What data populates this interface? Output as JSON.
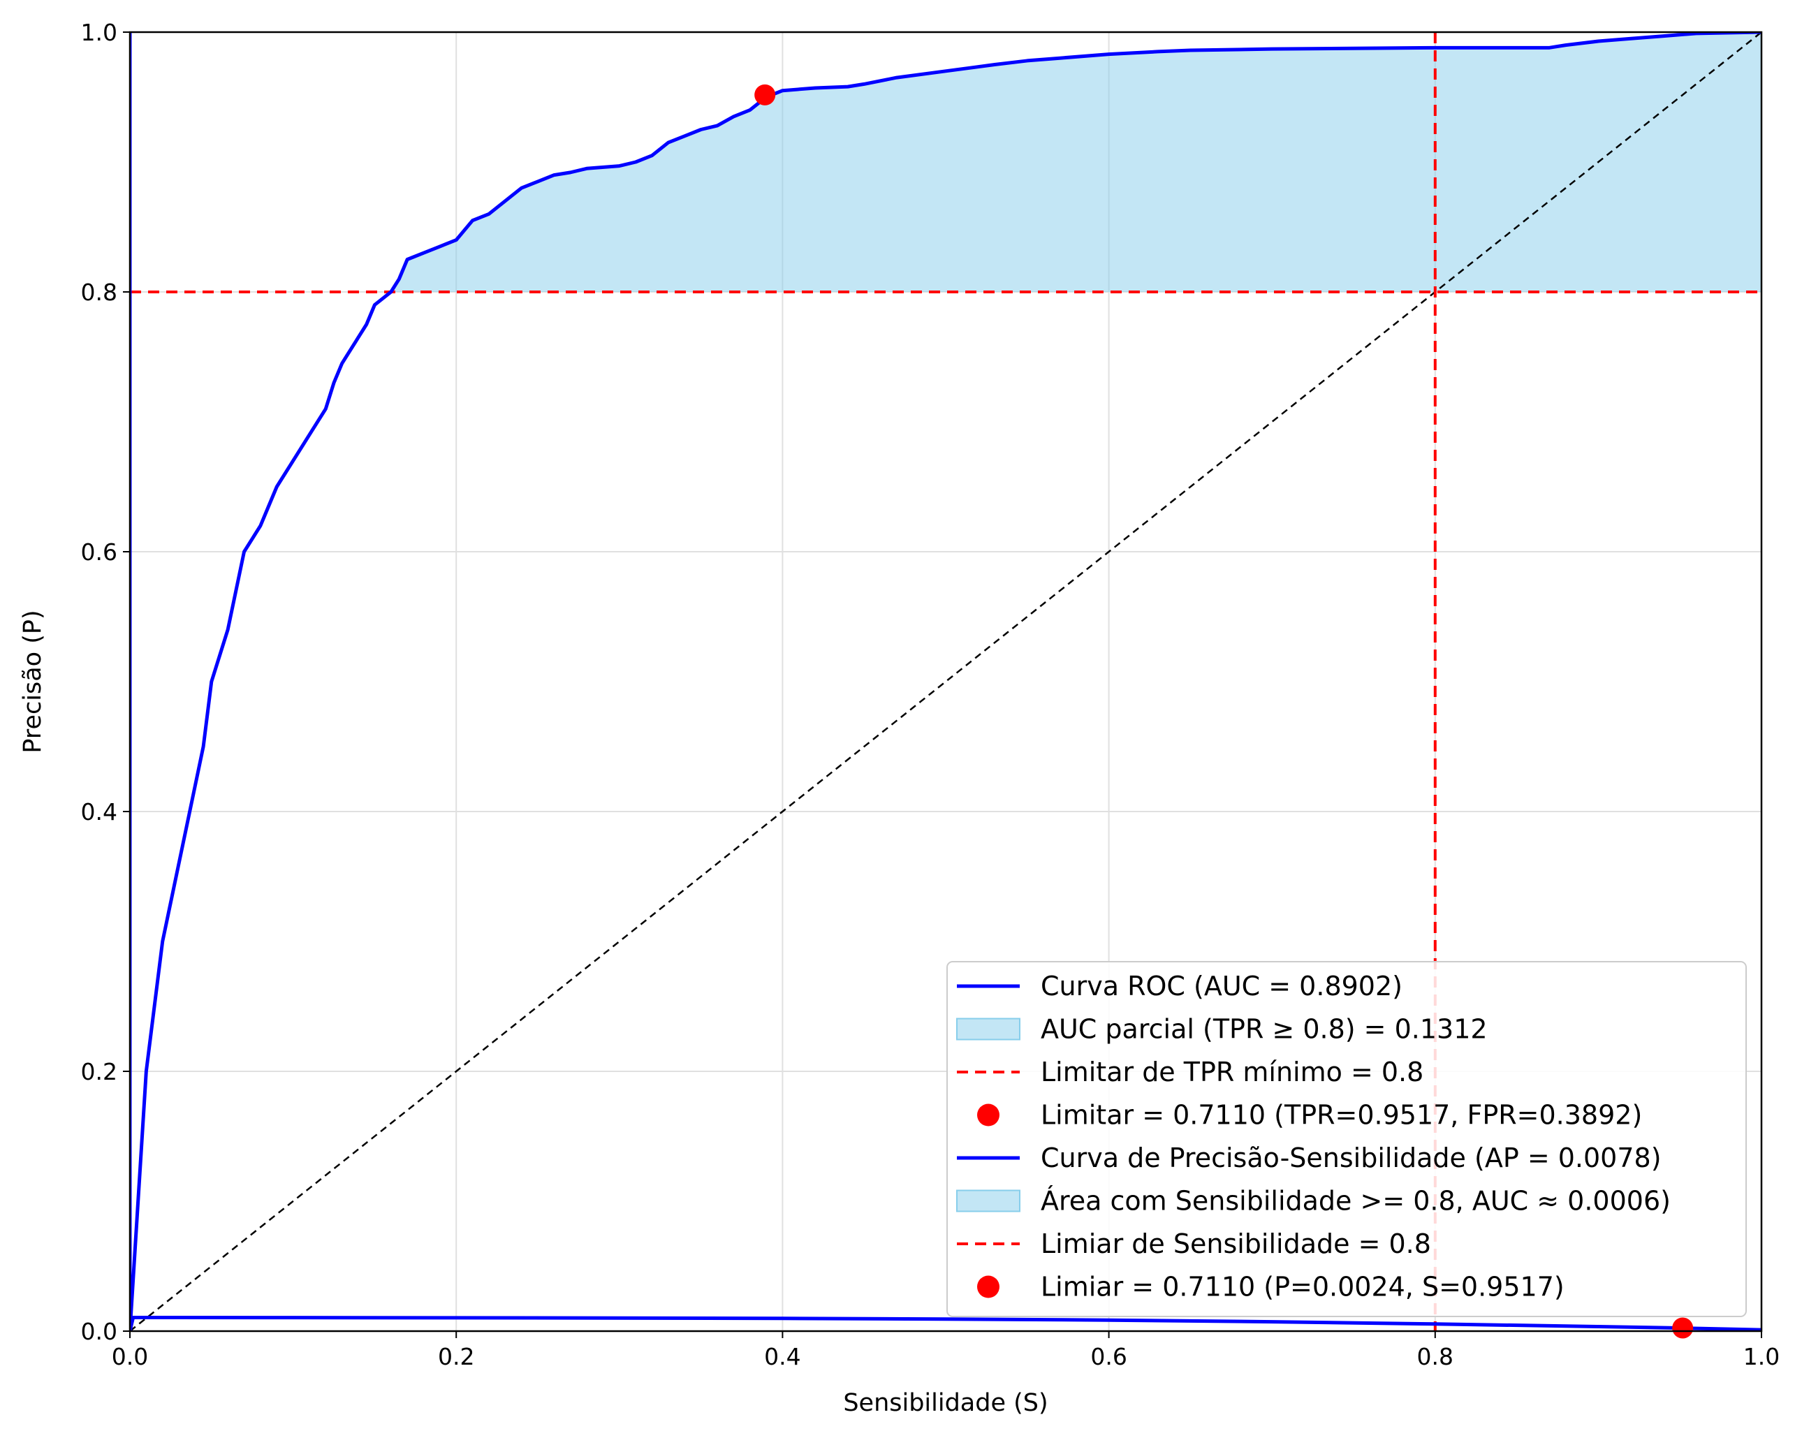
{
  "colors": {
    "curve": "#0000ff",
    "fill": "#87ceeb",
    "threshold": "#ff0000",
    "diagonal": "#000000",
    "grid": "#e0e0e0"
  },
  "chart_data": {
    "type": "line",
    "title": "",
    "xlabel": "Sensibilidade (S)",
    "ylabel": "Precisão (P)",
    "xlim": [
      0.0,
      1.0
    ],
    "ylim": [
      0.0,
      1.0
    ],
    "xticks": [
      "0.0",
      "0.2",
      "0.4",
      "0.6",
      "0.8",
      "1.0"
    ],
    "yticks": [
      "0.0",
      "0.2",
      "0.4",
      "0.6",
      "0.8",
      "1.0"
    ],
    "grid": true,
    "legend_position": "lower-right",
    "series": [
      {
        "name": "Curva ROC (AUC = 0.8902)",
        "kind": "line",
        "x": [
          0.0,
          0.005,
          0.01,
          0.02,
          0.03,
          0.035,
          0.04,
          0.045,
          0.05,
          0.06,
          0.065,
          0.07,
          0.075,
          0.08,
          0.085,
          0.09,
          0.1,
          0.11,
          0.12,
          0.125,
          0.13,
          0.135,
          0.14,
          0.145,
          0.15,
          0.155,
          0.16,
          0.165,
          0.17,
          0.18,
          0.19,
          0.2,
          0.21,
          0.22,
          0.23,
          0.24,
          0.25,
          0.26,
          0.27,
          0.28,
          0.3,
          0.31,
          0.32,
          0.33,
          0.34,
          0.35,
          0.36,
          0.37,
          0.38,
          0.39,
          0.4,
          0.42,
          0.44,
          0.45,
          0.47,
          0.5,
          0.53,
          0.55,
          0.57,
          0.6,
          0.63,
          0.65,
          0.7,
          0.8,
          0.87,
          0.88,
          0.9,
          0.92,
          0.94,
          0.96,
          1.0
        ],
        "y": [
          0.0,
          0.1,
          0.2,
          0.3,
          0.36,
          0.39,
          0.42,
          0.45,
          0.5,
          0.54,
          0.57,
          0.6,
          0.61,
          0.62,
          0.635,
          0.65,
          0.67,
          0.69,
          0.71,
          0.73,
          0.745,
          0.755,
          0.765,
          0.775,
          0.79,
          0.795,
          0.8,
          0.81,
          0.825,
          0.83,
          0.835,
          0.84,
          0.855,
          0.86,
          0.87,
          0.88,
          0.885,
          0.89,
          0.892,
          0.895,
          0.897,
          0.9,
          0.905,
          0.915,
          0.92,
          0.925,
          0.928,
          0.935,
          0.94,
          0.95,
          0.955,
          0.957,
          0.958,
          0.96,
          0.965,
          0.97,
          0.975,
          0.978,
          0.98,
          0.983,
          0.985,
          0.986,
          0.987,
          0.988,
          0.988,
          0.99,
          0.993,
          0.995,
          0.997,
          0.999,
          1.0
        ]
      },
      {
        "name": "AUC parcial (TPR ≥ 0.8) = 0.1312",
        "kind": "area",
        "baseline": 0.8
      },
      {
        "name": "Limitar de TPR mínimo = 0.8",
        "kind": "hline",
        "y": 0.8
      },
      {
        "name": "Limitar = 0.7110 (TPR=0.9517, FPR=0.3892)",
        "kind": "point",
        "x": 0.3892,
        "y": 0.9517
      },
      {
        "name": "Curva de Precisão-Sensibilidade (AP = 0.0078)",
        "kind": "line",
        "x": [
          0.0,
          0.002,
          0.1,
          0.2,
          0.3,
          0.4,
          0.5,
          0.6,
          0.7,
          0.8,
          0.9,
          0.95,
          1.0
        ],
        "y": [
          0.0,
          0.0105,
          0.0104,
          0.0103,
          0.0101,
          0.0098,
          0.0093,
          0.0085,
          0.0072,
          0.0055,
          0.0035,
          0.0024,
          0.001
        ]
      },
      {
        "name": "Área com Sensibilidade >= 0.8, AUC ≈ 0.0006)",
        "kind": "area",
        "xmin": 0.8
      },
      {
        "name": "Limiar de Sensibilidade = 0.8",
        "kind": "vline",
        "x": 0.8
      },
      {
        "name": "Limiar = 0.7110 (P=0.0024, S=0.9517)",
        "kind": "point",
        "x": 0.9517,
        "y": 0.0024
      }
    ],
    "diagonal": {
      "x": [
        0.0,
        1.0
      ],
      "y": [
        0.0,
        1.0
      ]
    }
  }
}
